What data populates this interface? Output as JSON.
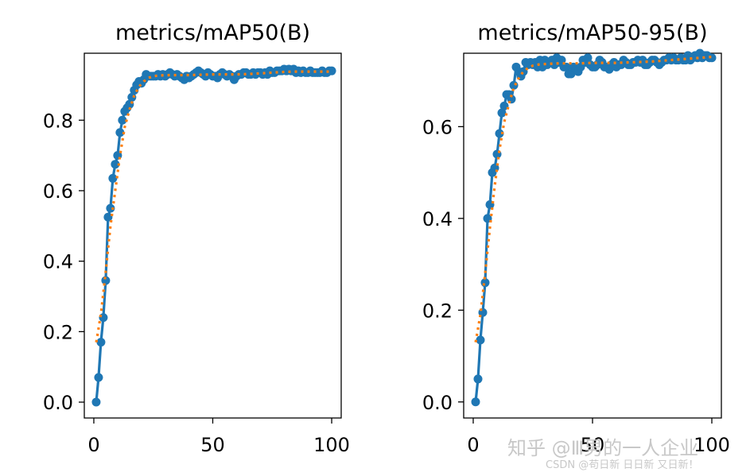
{
  "watermark": {
    "line1": "知乎 @Ⅲ男的一人企业",
    "line2": "CSDN @苟日新 日日新 又日新！"
  },
  "colors": {
    "line": "#1f77b4",
    "smooth": "#ff7f0e",
    "axis": "#000000"
  },
  "chart_data": [
    {
      "type": "line",
      "title": "metrics/mAP50(B)",
      "xlim": [
        -4,
        104
      ],
      "ylim": [
        -0.045,
        0.99
      ],
      "xticks": [
        0,
        50,
        100
      ],
      "xtick_labels": [
        "0",
        "50",
        "100"
      ],
      "yticks": [
        0.0,
        0.2,
        0.4,
        0.6,
        0.8
      ],
      "ytick_labels": [
        "0.0",
        "0.2",
        "0.4",
        "0.6",
        "0.8"
      ],
      "series": [
        {
          "style": "line-with-dots",
          "x": [
            1,
            2,
            3,
            4,
            5,
            6,
            7,
            8,
            9,
            10,
            11,
            12,
            13,
            14,
            15,
            16,
            17,
            18,
            19,
            20,
            21,
            22,
            23,
            24,
            25,
            26,
            27,
            28,
            29,
            30,
            31,
            32,
            33,
            34,
            35,
            36,
            37,
            38,
            39,
            40,
            41,
            42,
            43,
            44,
            45,
            46,
            47,
            48,
            49,
            50,
            51,
            52,
            53,
            54,
            55,
            56,
            57,
            58,
            59,
            60,
            61,
            62,
            63,
            64,
            65,
            66,
            67,
            68,
            69,
            70,
            71,
            72,
            73,
            74,
            75,
            76,
            77,
            78,
            79,
            80,
            81,
            82,
            83,
            84,
            85,
            86,
            87,
            88,
            89,
            90,
            91,
            92,
            93,
            94,
            95,
            96,
            97,
            98,
            99,
            100
          ],
          "y": [
            0.0,
            0.07,
            0.17,
            0.24,
            0.345,
            0.525,
            0.55,
            0.635,
            0.675,
            0.7,
            0.765,
            0.8,
            0.825,
            0.835,
            0.845,
            0.865,
            0.885,
            0.9,
            0.91,
            0.905,
            0.915,
            0.93,
            0.925,
            0.925,
            0.925,
            0.925,
            0.93,
            0.925,
            0.93,
            0.925,
            0.93,
            0.935,
            0.93,
            0.925,
            0.93,
            0.925,
            0.92,
            0.915,
            0.925,
            0.92,
            0.925,
            0.93,
            0.935,
            0.94,
            0.935,
            0.93,
            0.925,
            0.935,
            0.93,
            0.925,
            0.925,
            0.92,
            0.93,
            0.935,
            0.93,
            0.925,
            0.93,
            0.925,
            0.915,
            0.925,
            0.93,
            0.93,
            0.935,
            0.935,
            0.93,
            0.93,
            0.935,
            0.93,
            0.935,
            0.935,
            0.93,
            0.935,
            0.93,
            0.94,
            0.935,
            0.935,
            0.94,
            0.94,
            0.94,
            0.945,
            0.94,
            0.945,
            0.94,
            0.945,
            0.935,
            0.94,
            0.935,
            0.94,
            0.935,
            0.935,
            0.94,
            0.935,
            0.935,
            0.935,
            0.935,
            0.94,
            0.935,
            0.935,
            0.94,
            0.94
          ]
        },
        {
          "style": "dotted",
          "x": [
            1,
            3,
            5,
            7,
            9,
            11,
            13,
            15,
            17,
            19,
            21,
            23,
            25,
            28,
            32,
            36,
            40,
            45,
            50,
            55,
            60,
            65,
            70,
            75,
            80,
            85,
            90,
            95,
            100
          ],
          "y": [
            0.17,
            0.25,
            0.37,
            0.5,
            0.6,
            0.7,
            0.78,
            0.83,
            0.87,
            0.895,
            0.91,
            0.92,
            0.925,
            0.927,
            0.928,
            0.928,
            0.928,
            0.929,
            0.93,
            0.93,
            0.93,
            0.931,
            0.933,
            0.935,
            0.937,
            0.938,
            0.938,
            0.938,
            0.938
          ]
        }
      ]
    },
    {
      "type": "line",
      "title": "metrics/mAP50-95(B)",
      "xlim": [
        -4,
        104
      ],
      "ylim": [
        -0.035,
        0.76
      ],
      "xticks": [
        0,
        50,
        100
      ],
      "xtick_labels": [
        "0",
        "50",
        "100"
      ],
      "yticks": [
        0.0,
        0.2,
        0.4,
        0.6
      ],
      "ytick_labels": [
        "0.0",
        "0.2",
        "0.4",
        "0.6"
      ],
      "series": [
        {
          "style": "line-with-dots",
          "x": [
            1,
            2,
            3,
            4,
            5,
            6,
            7,
            8,
            9,
            10,
            11,
            12,
            13,
            14,
            15,
            16,
            17,
            18,
            19,
            20,
            21,
            22,
            23,
            24,
            25,
            26,
            27,
            28,
            29,
            30,
            31,
            32,
            33,
            34,
            35,
            36,
            37,
            38,
            39,
            40,
            41,
            42,
            43,
            44,
            45,
            46,
            47,
            48,
            49,
            50,
            51,
            52,
            53,
            54,
            55,
            56,
            57,
            58,
            59,
            60,
            61,
            62,
            63,
            64,
            65,
            66,
            67,
            68,
            69,
            70,
            71,
            72,
            73,
            74,
            75,
            76,
            77,
            78,
            79,
            80,
            81,
            82,
            83,
            84,
            85,
            86,
            87,
            88,
            89,
            90,
            91,
            92,
            93,
            94,
            95,
            96,
            97,
            98,
            99,
            100
          ],
          "y": [
            0.0,
            0.05,
            0.135,
            0.195,
            0.26,
            0.4,
            0.43,
            0.5,
            0.51,
            0.54,
            0.585,
            0.63,
            0.645,
            0.67,
            0.67,
            0.66,
            0.69,
            0.73,
            0.72,
            0.71,
            0.72,
            0.74,
            0.735,
            0.74,
            0.735,
            0.74,
            0.73,
            0.745,
            0.73,
            0.745,
            0.735,
            0.74,
            0.745,
            0.735,
            0.75,
            0.74,
            0.745,
            0.73,
            0.73,
            0.715,
            0.715,
            0.73,
            0.725,
            0.72,
            0.73,
            0.745,
            0.74,
            0.75,
            0.735,
            0.73,
            0.73,
            0.735,
            0.745,
            0.74,
            0.73,
            0.73,
            0.725,
            0.735,
            0.74,
            0.73,
            0.735,
            0.735,
            0.745,
            0.74,
            0.735,
            0.735,
            0.74,
            0.74,
            0.745,
            0.74,
            0.745,
            0.735,
            0.735,
            0.74,
            0.745,
            0.745,
            0.74,
            0.735,
            0.74,
            0.745,
            0.745,
            0.75,
            0.745,
            0.75,
            0.745,
            0.745,
            0.75,
            0.745,
            0.745,
            0.755,
            0.745,
            0.75,
            0.755,
            0.75,
            0.76,
            0.75,
            0.755,
            0.755,
            0.75,
            0.75
          ]
        },
        {
          "style": "dotted",
          "x": [
            1,
            3,
            5,
            7,
            9,
            11,
            13,
            15,
            17,
            19,
            21,
            23,
            25,
            28,
            32,
            36,
            40,
            45,
            50,
            55,
            60,
            65,
            70,
            75,
            80,
            85,
            90,
            95,
            100
          ],
          "y": [
            0.13,
            0.19,
            0.28,
            0.38,
            0.47,
            0.55,
            0.61,
            0.65,
            0.685,
            0.705,
            0.72,
            0.728,
            0.733,
            0.736,
            0.737,
            0.738,
            0.738,
            0.738,
            0.739,
            0.739,
            0.739,
            0.74,
            0.741,
            0.742,
            0.744,
            0.746,
            0.748,
            0.75,
            0.752
          ]
        }
      ]
    }
  ]
}
